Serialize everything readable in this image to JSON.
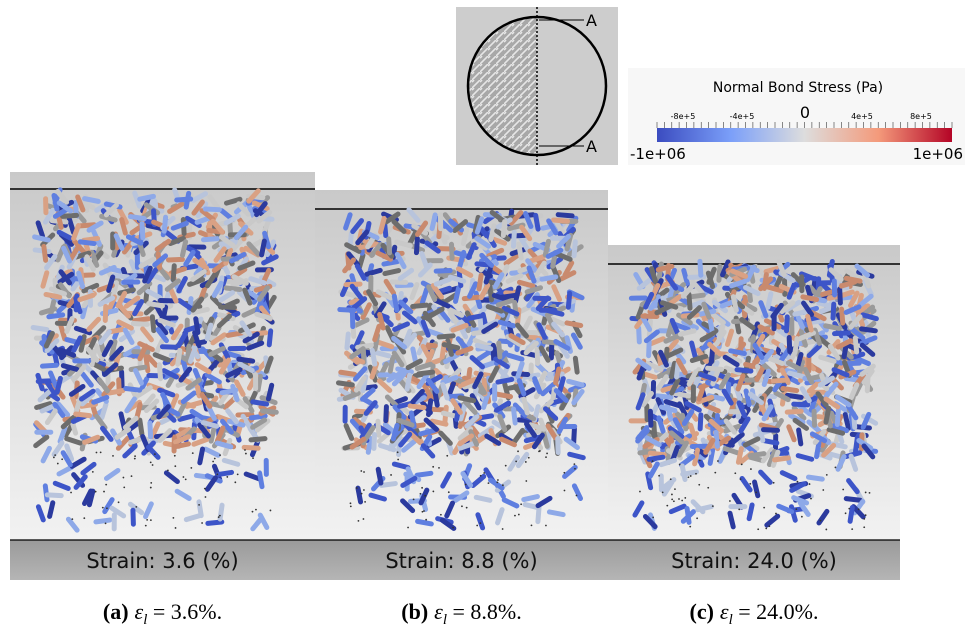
{
  "inset": {
    "labels": [
      "A",
      "A"
    ]
  },
  "colorbar": {
    "title": "Normal Bond Stress  (Pa)",
    "ticks": [
      "-8e+5",
      "-4e+5",
      "0",
      "4e+5",
      "8e+5"
    ],
    "min_label": "-1e+06",
    "max_label": "1e+06"
  },
  "panels": [
    {
      "strain_label": "Strain: 3.6 (%)",
      "caption": {
        "label": "(a)",
        "symbol": "ε",
        "subscript": "l",
        "equation": " = 3.6%."
      }
    },
    {
      "strain_label": "Strain: 8.8 (%)",
      "caption": {
        "label": "(b)",
        "symbol": "ε",
        "subscript": "l",
        "equation": " = 8.8%."
      }
    },
    {
      "strain_label": "Strain: 24.0 (%)",
      "caption": {
        "label": "(c)",
        "symbol": "ε",
        "subscript": "l",
        "equation": " = 24.0%."
      }
    }
  ]
}
